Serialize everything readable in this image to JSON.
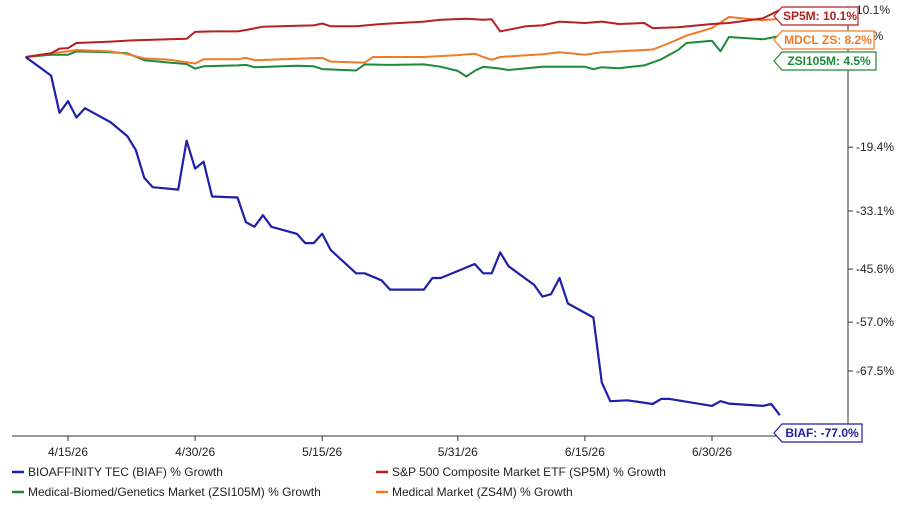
{
  "chart_data": {
    "type": "line",
    "title": "",
    "xlabel": "",
    "ylabel": "",
    "x_ticks": [
      "4/15/26",
      "4/30/26",
      "5/15/26",
      "5/31/26",
      "6/15/26",
      "6/30/26"
    ],
    "y_ticks": [
      {
        "value": 10.1,
        "label": "10.1%"
      },
      {
        "value": 4.5,
        "label": "4.5%"
      },
      {
        "value": -19.4,
        "label": "-19.4%"
      },
      {
        "value": -33.1,
        "label": "-33.1%"
      },
      {
        "value": -45.6,
        "label": "-45.6%"
      },
      {
        "value": -57.0,
        "label": "-57.0%"
      },
      {
        "value": -67.5,
        "label": "-67.5%"
      }
    ],
    "xlim": [
      "4/10/26",
      "7/8/26"
    ],
    "ylim": [
      -77.5,
      12
    ],
    "grid": false,
    "legend_position": "bottom",
    "series": [
      {
        "name": "BIOAFFINITY TEC (BIAF) % Growth",
        "key": "BIAF",
        "color": "#1f1fa8",
        "end_label": "BIAF: -77.0%",
        "points": [
          [
            "4/10/26",
            0
          ],
          [
            "4/13/26",
            -4
          ],
          [
            "4/14/26",
            -12
          ],
          [
            "4/15/26",
            -9.5
          ],
          [
            "4/16/26",
            -13
          ],
          [
            "4/17/26",
            -11
          ],
          [
            "4/20/26",
            -14
          ],
          [
            "4/22/26",
            -17
          ],
          [
            "4/23/26",
            -20
          ],
          [
            "4/24/26",
            -26
          ],
          [
            "4/25/26",
            -28
          ],
          [
            "4/28/26",
            -28.5
          ],
          [
            "4/29/26",
            -18
          ],
          [
            "4/30/26",
            -24
          ],
          [
            "5/1/26",
            -22.5
          ],
          [
            "5/2/26",
            -30
          ],
          [
            "5/5/26",
            -30.2
          ],
          [
            "5/6/26",
            -35.5
          ],
          [
            "5/7/26",
            -36.5
          ],
          [
            "5/8/26",
            -34
          ],
          [
            "5/9/26",
            -36.5
          ],
          [
            "5/12/26",
            -38
          ],
          [
            "5/13/26",
            -40
          ],
          [
            "5/14/26",
            -40
          ],
          [
            "5/15/26",
            -38
          ],
          [
            "5/16/26",
            -41.5
          ],
          [
            "5/19/26",
            -46.5
          ],
          [
            "5/20/26",
            -46.5
          ],
          [
            "5/22/26",
            -48
          ],
          [
            "5/23/26",
            -50
          ],
          [
            "5/27/26",
            -50
          ],
          [
            "5/28/26",
            -47.5
          ],
          [
            "5/29/26",
            -47.5
          ],
          [
            "5/31/26",
            -46
          ],
          [
            "6/2/26",
            -44.5
          ],
          [
            "6/3/26",
            -46.5
          ],
          [
            "6/4/26",
            -46.5
          ],
          [
            "6/5/26",
            -42
          ],
          [
            "6/6/26",
            -45
          ],
          [
            "6/9/26",
            -49
          ],
          [
            "6/10/26",
            -51.5
          ],
          [
            "6/11/26",
            -51
          ],
          [
            "6/12/26",
            -47.5
          ],
          [
            "6/13/26",
            -53
          ],
          [
            "6/16/26",
            -56
          ],
          [
            "6/17/26",
            -70
          ],
          [
            "6/18/26",
            -74
          ],
          [
            "6/20/26",
            -73.8
          ],
          [
            "6/23/26",
            -74.6
          ],
          [
            "6/24/26",
            -73.5
          ],
          [
            "6/25/26",
            -73.5
          ],
          [
            "6/30/26",
            -75
          ],
          [
            "7/1/26",
            -74
          ],
          [
            "7/2/26",
            -74.5
          ],
          [
            "7/6/26",
            -75
          ],
          [
            "7/7/26",
            -74.6
          ],
          [
            "7/8/26",
            -77
          ]
        ]
      },
      {
        "name": "S&P 500 Composite Market ETF (SP5M) % Growth",
        "key": "SP5M",
        "color": "#b52020",
        "end_label": "SP5M: 10.1%",
        "points": [
          [
            "4/10/26",
            0
          ],
          [
            "4/13/26",
            0.8
          ],
          [
            "4/14/26",
            1.8
          ],
          [
            "4/15/26",
            1.9
          ],
          [
            "4/16/26",
            3
          ],
          [
            "4/20/26",
            3.3
          ],
          [
            "4/23/26",
            3.6
          ],
          [
            "4/27/26",
            3.8
          ],
          [
            "4/29/26",
            3.9
          ],
          [
            "4/30/26",
            5.4
          ],
          [
            "5/2/26",
            5.5
          ],
          [
            "5/5/26",
            5.5
          ],
          [
            "5/6/26",
            5.8
          ],
          [
            "5/8/26",
            6.5
          ],
          [
            "5/12/26",
            6.7
          ],
          [
            "5/14/26",
            6.8
          ],
          [
            "5/15/26",
            7.2
          ],
          [
            "5/16/26",
            6.6
          ],
          [
            "5/19/26",
            6.6
          ],
          [
            "5/22/26",
            7.1
          ],
          [
            "5/27/26",
            7.6
          ],
          [
            "5/29/26",
            8
          ],
          [
            "6/1/26",
            8.2
          ],
          [
            "6/3/26",
            8
          ],
          [
            "6/4/26",
            8.1
          ],
          [
            "6/5/26",
            5.5
          ],
          [
            "6/8/26",
            6.6
          ],
          [
            "6/10/26",
            6.8
          ],
          [
            "6/12/26",
            7.6
          ],
          [
            "6/15/26",
            7.3
          ],
          [
            "6/17/26",
            7.6
          ],
          [
            "6/19/26",
            7.1
          ],
          [
            "6/22/26",
            7.3
          ],
          [
            "6/23/26",
            6.2
          ],
          [
            "6/26/26",
            6.4
          ],
          [
            "6/30/26",
            7.1
          ],
          [
            "7/2/26",
            7.3
          ],
          [
            "7/6/26",
            8.3
          ],
          [
            "7/8/26",
            10.1
          ]
        ]
      },
      {
        "name": "Medical-Biomed/Genetics Market (ZSI105M) % Growth",
        "key": "ZSI105M",
        "color": "#1d8a3a",
        "end_label": "ZSI105M: 4.5%",
        "points": [
          [
            "4/10/26",
            0
          ],
          [
            "4/13/26",
            0.5
          ],
          [
            "4/15/26",
            0.5
          ],
          [
            "4/16/26",
            1.2
          ],
          [
            "4/20/26",
            1
          ],
          [
            "4/22/26",
            0.8
          ],
          [
            "4/24/26",
            -0.7
          ],
          [
            "4/27/26",
            -1.2
          ],
          [
            "4/29/26",
            -1.5
          ],
          [
            "4/30/26",
            -2.5
          ],
          [
            "5/1/26",
            -2
          ],
          [
            "5/5/26",
            -1.8
          ],
          [
            "5/6/26",
            -1.7
          ],
          [
            "5/7/26",
            -2.2
          ],
          [
            "5/12/26",
            -1.9
          ],
          [
            "5/14/26",
            -2
          ],
          [
            "5/15/26",
            -2.6
          ],
          [
            "5/19/26",
            -2.9
          ],
          [
            "5/20/26",
            -1.6
          ],
          [
            "5/23/26",
            -1.7
          ],
          [
            "5/27/26",
            -1.6
          ],
          [
            "5/29/26",
            -2.1
          ],
          [
            "5/31/26",
            -3
          ],
          [
            "6/1/26",
            -4.2
          ],
          [
            "6/2/26",
            -3
          ],
          [
            "6/3/26",
            -2.1
          ],
          [
            "6/5/26",
            -2.5
          ],
          [
            "6/6/26",
            -2.8
          ],
          [
            "6/10/26",
            -2.1
          ],
          [
            "6/15/26",
            -2.1
          ],
          [
            "6/16/26",
            -2.6
          ],
          [
            "6/17/26",
            -2.2
          ],
          [
            "6/19/26",
            -2.4
          ],
          [
            "6/22/26",
            -1.8
          ],
          [
            "6/24/26",
            -0.5
          ],
          [
            "6/26/26",
            1.5
          ],
          [
            "6/27/26",
            3
          ],
          [
            "6/30/26",
            3.5
          ],
          [
            "7/1/26",
            1.2
          ],
          [
            "7/2/26",
            4.3
          ],
          [
            "7/6/26",
            3.8
          ],
          [
            "7/8/26",
            4.5
          ]
        ]
      },
      {
        "name": "Medical Market (ZS4M) % Growth",
        "key": "ZS4M",
        "color": "#f07a26",
        "end_label": "MDCL ZS: 8.2%",
        "points": [
          [
            "4/10/26",
            0
          ],
          [
            "4/13/26",
            0.8
          ],
          [
            "4/15/26",
            1.2
          ],
          [
            "4/16/26",
            1.5
          ],
          [
            "4/20/26",
            1.2
          ],
          [
            "4/22/26",
            0.6
          ],
          [
            "4/24/26",
            -0.3
          ],
          [
            "4/27/26",
            -0.6
          ],
          [
            "4/30/26",
            -1.4
          ],
          [
            "5/1/26",
            -0.5
          ],
          [
            "5/5/26",
            -0.5
          ],
          [
            "5/6/26",
            -0.2
          ],
          [
            "5/7/26",
            -0.7
          ],
          [
            "5/12/26",
            -0.4
          ],
          [
            "5/15/26",
            -0.2
          ],
          [
            "5/16/26",
            -1
          ],
          [
            "5/20/26",
            -1.2
          ],
          [
            "5/21/26",
            0
          ],
          [
            "5/27/26",
            0
          ],
          [
            "5/31/26",
            0.4
          ],
          [
            "6/2/26",
            0.7
          ],
          [
            "6/3/26",
            0
          ],
          [
            "6/4/26",
            -0.6
          ],
          [
            "6/5/26",
            0
          ],
          [
            "6/10/26",
            0.6
          ],
          [
            "6/12/26",
            1
          ],
          [
            "6/15/26",
            0.5
          ],
          [
            "6/17/26",
            1
          ],
          [
            "6/20/26",
            1.3
          ],
          [
            "6/23/26",
            1.6
          ],
          [
            "6/25/26",
            3
          ],
          [
            "6/27/26",
            4.6
          ],
          [
            "6/30/26",
            6.2
          ],
          [
            "7/2/26",
            8.6
          ],
          [
            "7/6/26",
            7.9
          ],
          [
            "7/8/26",
            8.2
          ]
        ]
      }
    ]
  }
}
